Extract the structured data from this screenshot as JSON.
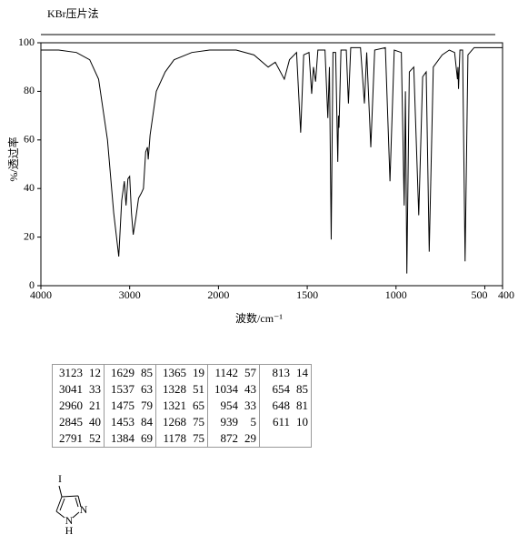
{
  "chart_data": {
    "type": "line",
    "title": "KBr压片法",
    "x_label": "波数/cm⁻¹",
    "y_label": "%/透过率",
    "xlim": [
      4000,
      400
    ],
    "x_scale_break": 2000,
    "xticks": [
      4000,
      3000,
      2000,
      1500,
      1000,
      500,
      400
    ],
    "ylim": [
      0,
      100
    ],
    "yticks": [
      0,
      20,
      40,
      60,
      80,
      100
    ],
    "grid": false,
    "x": [
      4000,
      3800,
      3600,
      3450,
      3350,
      3250,
      3180,
      3123,
      3090,
      3060,
      3041,
      3020,
      3000,
      2980,
      2960,
      2930,
      2900,
      2870,
      2845,
      2820,
      2800,
      2791,
      2770,
      2700,
      2600,
      2500,
      2300,
      2100,
      1900,
      1800,
      1720,
      1680,
      1629,
      1600,
      1560,
      1537,
      1520,
      1490,
      1475,
      1465,
      1453,
      1440,
      1400,
      1384,
      1375,
      1365,
      1355,
      1340,
      1328,
      1324,
      1321,
      1310,
      1280,
      1268,
      1255,
      1200,
      1178,
      1165,
      1142,
      1120,
      1060,
      1034,
      1010,
      970,
      954,
      947,
      939,
      925,
      900,
      872,
      850,
      830,
      813,
      790,
      740,
      700,
      670,
      654,
      651,
      648,
      640,
      625,
      611,
      595,
      560,
      500,
      400
    ],
    "series": [
      {
        "name": "spectrum",
        "color": "#000000",
        "values": [
          97,
          97,
          96,
          93,
          85,
          60,
          30,
          12,
          35,
          43,
          33,
          44,
          45,
          30,
          21,
          28,
          36,
          38,
          40,
          55,
          57,
          52,
          62,
          80,
          88,
          93,
          96,
          97,
          97,
          95,
          90,
          92,
          85,
          93,
          96,
          63,
          95,
          96,
          79,
          90,
          84,
          97,
          97,
          69,
          90,
          19,
          96,
          96,
          51,
          70,
          65,
          97,
          97,
          75,
          98,
          98,
          75,
          96,
          57,
          97,
          98,
          43,
          97,
          96,
          33,
          80,
          5,
          88,
          90,
          29,
          86,
          88,
          14,
          90,
          95,
          97,
          96,
          85,
          90,
          81,
          97,
          97,
          10,
          95,
          98,
          98,
          98
        ]
      }
    ]
  },
  "table": {
    "columns": [
      [
        [
          3123,
          12
        ],
        [
          3041,
          33
        ],
        [
          2960,
          21
        ],
        [
          2845,
          40
        ],
        [
          2791,
          52
        ]
      ],
      [
        [
          1629,
          85
        ],
        [
          1537,
          63
        ],
        [
          1475,
          79
        ],
        [
          1453,
          84
        ],
        [
          1384,
          69
        ]
      ],
      [
        [
          1365,
          19
        ],
        [
          1328,
          51
        ],
        [
          1321,
          65
        ],
        [
          1268,
          75
        ],
        [
          1178,
          75
        ]
      ],
      [
        [
          1142,
          57
        ],
        [
          1034,
          43
        ],
        [
          954,
          33
        ],
        [
          939,
          5
        ],
        [
          872,
          29
        ]
      ],
      [
        [
          813,
          14
        ],
        [
          654,
          85
        ],
        [
          648,
          81
        ],
        [
          611,
          10
        ]
      ]
    ]
  },
  "structure": {
    "atoms": [
      "I",
      "N",
      "N",
      "H"
    ]
  }
}
